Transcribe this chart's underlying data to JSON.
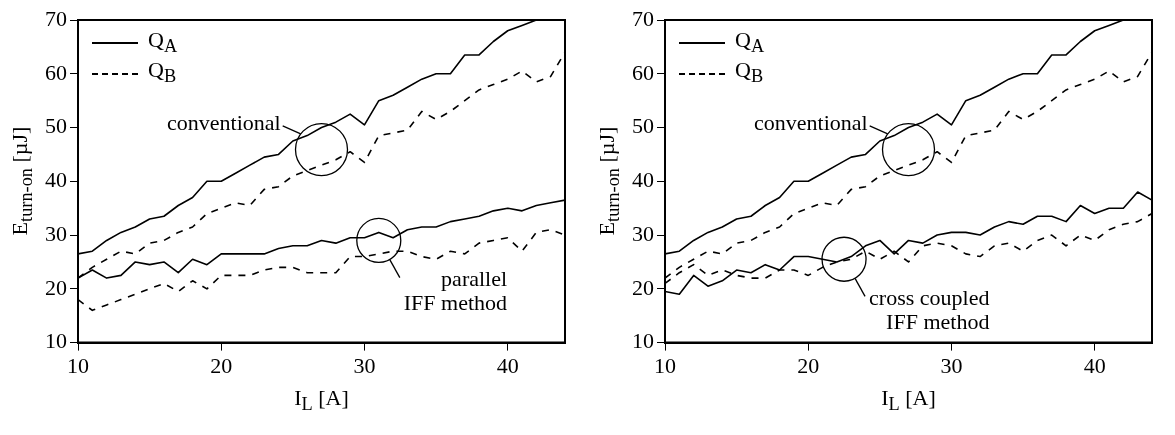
{
  "chart_data": [
    {
      "type": "line",
      "xlabel": "I$_{L}$ [A]",
      "ylabel": "E$_{turn-on}$ [µJ]",
      "xlim": [
        10,
        44
      ],
      "xticks": [
        10,
        20,
        30,
        40
      ],
      "ylim": [
        10,
        70
      ],
      "yticks": [
        10,
        20,
        30,
        40,
        50,
        60,
        70
      ],
      "grid": false,
      "legend": "top left",
      "marker": "none",
      "x": [
        10,
        11,
        12,
        13,
        14,
        15,
        16,
        17,
        18,
        19,
        20,
        21,
        22,
        23,
        24,
        25,
        26,
        27,
        28,
        29,
        30,
        31,
        32,
        33,
        34,
        35,
        36,
        37,
        38,
        39,
        40,
        41,
        42,
        43,
        44
      ],
      "series": [
        {
          "name": "Q$_{A}$",
          "color": "#000000",
          "line_style": "solid",
          "values": [
            26.5,
            27,
            29,
            30.5,
            31.5,
            33,
            33.5,
            35.5,
            37,
            40,
            40,
            41.5,
            43,
            44.5,
            45,
            47.5,
            48.5,
            50,
            51,
            52.5,
            50.5,
            55,
            56,
            57.5,
            59,
            60,
            60,
            63.5,
            63.5,
            66,
            68,
            69,
            70,
            null,
            null
          ]
        },
        {
          "name": "Q$_{B}$",
          "color": "#000000",
          "line_style": "dashed",
          "values": [
            22,
            24,
            25.5,
            27,
            26.5,
            28.5,
            29,
            30.5,
            31.5,
            34,
            35,
            36,
            35.5,
            38.5,
            39,
            41,
            42,
            43,
            44,
            45.5,
            43.5,
            48.5,
            49,
            49.5,
            53,
            51.5,
            53,
            55,
            57,
            58,
            59,
            60.5,
            58.5,
            59.5,
            64
          ]
        },
        {
          "color": "#000000",
          "line_style": "solid",
          "values": [
            22,
            23.5,
            22,
            22.5,
            25,
            24.5,
            25,
            23,
            25.5,
            24.5,
            26.5,
            26.5,
            26.5,
            26.5,
            27.5,
            28,
            28,
            29,
            28.5,
            29.5,
            29.5,
            30.5,
            29.5,
            31,
            31.5,
            31.5,
            32.5,
            33,
            33.5,
            34.5,
            35,
            34.5,
            35.5,
            36,
            36.5
          ]
        },
        {
          "color": "#000000",
          "line_style": "dashed",
          "values": [
            18,
            16,
            17,
            18,
            19,
            20,
            21,
            19.5,
            21.5,
            20,
            22.5,
            22.5,
            22.5,
            23.5,
            24,
            24,
            23,
            23,
            23,
            26,
            26,
            26.5,
            27,
            27,
            26,
            25.5,
            27,
            26.5,
            28.5,
            29,
            29.5,
            27,
            30.5,
            31,
            30
          ]
        }
      ],
      "annotations": [
        {
          "text": "conventional",
          "x": 27,
          "y": 50
        },
        {
          "text": "parallel\nIFF method",
          "x": 31,
          "y": 29
        }
      ]
    },
    {
      "type": "line",
      "xlabel": "I$_{L}$ [A]",
      "ylabel": "E$_{turn-on}$ [µJ]",
      "xlim": [
        10,
        44
      ],
      "xticks": [
        10,
        20,
        30,
        40
      ],
      "ylim": [
        10,
        70
      ],
      "yticks": [
        10,
        20,
        30,
        40,
        50,
        60,
        70
      ],
      "grid": false,
      "legend": "top left",
      "marker": "none",
      "x": [
        10,
        11,
        12,
        13,
        14,
        15,
        16,
        17,
        18,
        19,
        20,
        21,
        22,
        23,
        24,
        25,
        26,
        27,
        28,
        29,
        30,
        31,
        32,
        33,
        34,
        35,
        36,
        37,
        38,
        39,
        40,
        41,
        42,
        43,
        44
      ],
      "series": [
        {
          "name": "Q$_{A}$",
          "color": "#000000",
          "line_style": "solid",
          "values": [
            26.5,
            27,
            29,
            30.5,
            31.5,
            33,
            33.5,
            35.5,
            37,
            40,
            40,
            41.5,
            43,
            44.5,
            45,
            47.5,
            48.5,
            50,
            51,
            52.5,
            50.5,
            55,
            56,
            57.5,
            59,
            60,
            60,
            63.5,
            63.5,
            66,
            68,
            69,
            70,
            null,
            null
          ]
        },
        {
          "name": "Q$_{B}$",
          "color": "#000000",
          "line_style": "dashed",
          "values": [
            22,
            24,
            25.5,
            27,
            26.5,
            28.5,
            29,
            30.5,
            31.5,
            34,
            35,
            36,
            35.5,
            38.5,
            39,
            41,
            42,
            43,
            44,
            45.5,
            43.5,
            48.5,
            49,
            49.5,
            53,
            51.5,
            53,
            55,
            57,
            58,
            59,
            60.5,
            58.5,
            59.5,
            64
          ]
        },
        {
          "color": "#000000",
          "line_style": "solid",
          "values": [
            19.5,
            19,
            22.5,
            20.5,
            21.5,
            23.5,
            23,
            24.5,
            23.5,
            26,
            26,
            25.5,
            25,
            26,
            28,
            29,
            26.5,
            29,
            28.5,
            30,
            30.5,
            30.5,
            30,
            31.5,
            32.5,
            32,
            33.5,
            33.5,
            32.5,
            35.5,
            34,
            35,
            35,
            38,
            36.5
          ]
        },
        {
          "color": "#000000",
          "line_style": "dashed",
          "values": [
            21,
            23,
            24.5,
            22.5,
            23.5,
            22.5,
            22,
            22,
            23.5,
            23.5,
            22.5,
            24,
            25,
            25.5,
            27,
            25.5,
            27,
            25,
            28,
            28.5,
            28,
            26.5,
            26,
            28,
            28.5,
            27,
            29,
            30,
            28,
            30,
            29,
            31,
            32,
            32.5,
            34
          ]
        }
      ],
      "annotations": [
        {
          "text": "conventional",
          "x": 27,
          "y": 50
        },
        {
          "text": "cross coupled\nIFF method",
          "x": 22.5,
          "y": 25.5
        }
      ]
    }
  ]
}
